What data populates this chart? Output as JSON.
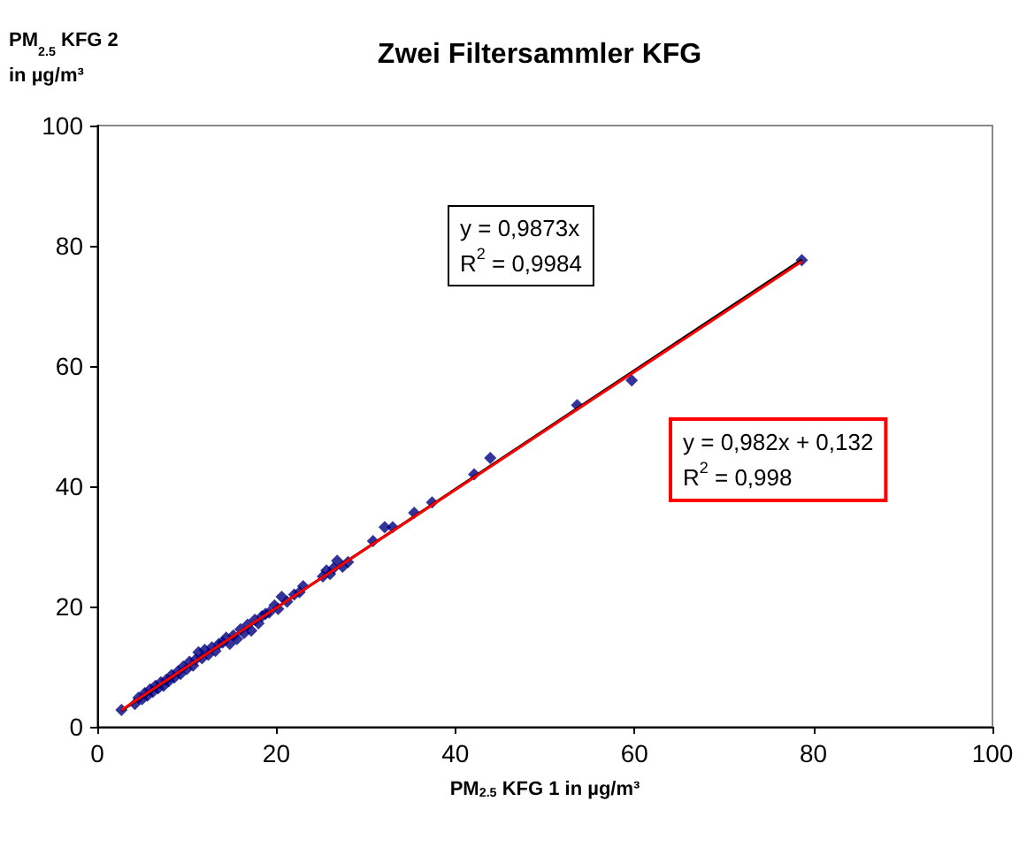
{
  "chart_data": {
    "type": "scatter",
    "title": "Zwei Filtersammler KFG",
    "xlabel": "PM$_{2.5}$ KFG 1 in µg/m³",
    "ylabel": "PM$_{2.5}$ KFG 2\nin µg/m³",
    "xlim": [
      0,
      100
    ],
    "ylim": [
      0,
      100
    ],
    "xticks": [
      0,
      20,
      40,
      60,
      80,
      100
    ],
    "yticks": [
      0,
      20,
      40,
      60,
      80,
      100
    ],
    "grid": false,
    "marker": "diamond",
    "annotations": [
      "y = 0,9873x\nR$^{2}$ = 0,9984",
      "y = 0,982x + 0,132\nR$^{2}$ = 0,998"
    ],
    "series": [
      {
        "color": "#000080",
        "x": [
          2.7,
          4.2,
          4.6,
          5.0,
          5.3,
          5.6,
          5.9,
          6.2,
          6.5,
          6.8,
          7.1,
          7.4,
          7.7,
          8.0,
          8.3,
          8.6,
          9.0,
          9.3,
          9.6,
          10.0,
          10.3,
          10.7,
          11.0,
          11.3,
          11.7,
          12.0,
          12.4,
          12.8,
          13.2,
          13.6,
          14.0,
          14.4,
          14.8,
          15.2,
          15.6,
          16.0,
          16.4,
          16.8,
          17.2,
          17.6,
          18.0,
          18.4,
          18.8,
          19.2,
          19.8,
          20.2,
          20.6,
          21.2,
          22.0,
          22.6,
          23.0,
          25.2,
          25.6,
          26.0,
          26.4,
          26.8,
          27.4,
          28.0,
          30.8,
          32.1,
          33.0,
          35.4,
          37.4,
          42.1,
          43.9,
          53.6,
          59.7,
          78.7
        ],
        "values": [
          2.8,
          3.8,
          4.8,
          4.6,
          5.6,
          5.2,
          6.2,
          5.8,
          6.8,
          6.4,
          7.4,
          6.8,
          7.8,
          7.6,
          8.6,
          8.2,
          9.2,
          8.8,
          10.0,
          9.6,
          10.8,
          10.2,
          11.2,
          12.4,
          11.4,
          12.8,
          12.0,
          13.2,
          12.6,
          13.8,
          14.0,
          14.8,
          13.8,
          15.2,
          14.6,
          16.2,
          15.6,
          17.0,
          16.0,
          17.8,
          17.2,
          18.4,
          18.8,
          19.0,
          20.2,
          19.6,
          21.6,
          20.8,
          22.0,
          22.4,
          23.4,
          25.0,
          26.0,
          25.4,
          26.4,
          27.6,
          26.6,
          27.4,
          30.9,
          33.2,
          33.2,
          35.6,
          37.3,
          42.0,
          44.7,
          53.5,
          57.6,
          77.6
        ]
      },
      {
        "type": "line",
        "marker": "none",
        "color": "#000000",
        "x": [
          2.7,
          78.7
        ],
        "values": [
          2.7,
          77.7
        ]
      },
      {
        "type": "line",
        "marker": "none",
        "color": "#ff0000",
        "x": [
          2.7,
          78.7
        ],
        "values": [
          2.8,
          77.4
        ]
      }
    ]
  }
}
